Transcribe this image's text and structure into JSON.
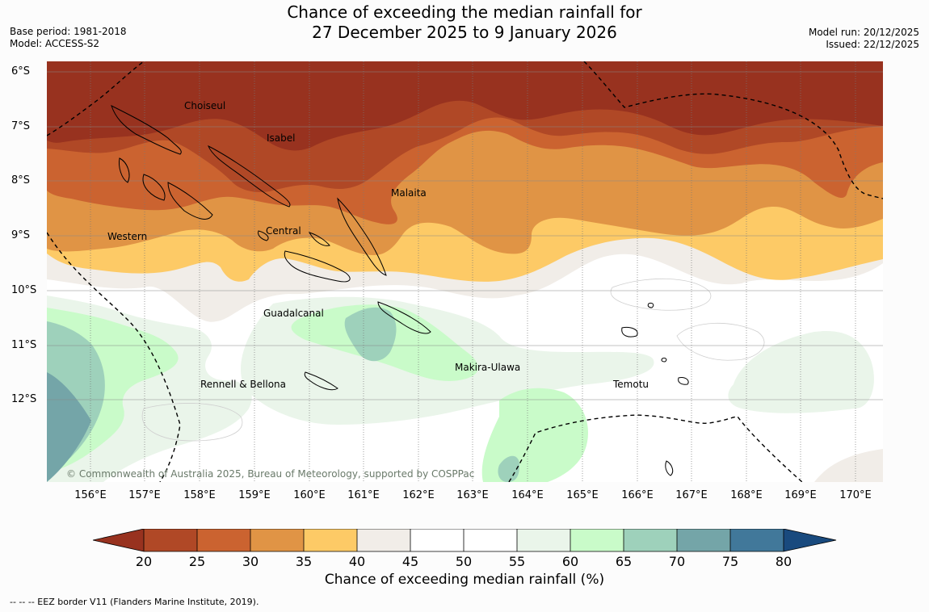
{
  "title": {
    "line1": "Chance of exceeding the median rainfall for",
    "line2": "27 December 2025 to 9 January 2026"
  },
  "meta": {
    "base_period": "Base period: 1981-2018",
    "model": "Model: ACCESS-S2",
    "model_run": "Model run: 20/12/2025",
    "issued": "Issued: 22/12/2025"
  },
  "map": {
    "lat_labels": [
      "6°S",
      "7°S",
      "8°S",
      "9°S",
      "10°S",
      "11°S",
      "12°S"
    ],
    "lon_labels": [
      "156°E",
      "157°E",
      "158°E",
      "159°E",
      "160°E",
      "161°E",
      "162°E",
      "163°E",
      "164°E",
      "165°E",
      "166°E",
      "167°E",
      "168°E",
      "169°E",
      "170°E"
    ],
    "regions": {
      "choiseul": "Choiseul",
      "isabel": "Isabel",
      "malaita": "Malaita",
      "western": "Western",
      "central": "Central",
      "guadalcanal": "Guadalcanal",
      "rennell": "Rennell & Bellona",
      "makira": "Makira-Ulawa",
      "temotu": "Temotu"
    },
    "copyright": "© Commonwealth of Australia 2025, Bureau of Meteorology, supported by COSPPac"
  },
  "colorbar": {
    "ticks": [
      "20",
      "25",
      "30",
      "35",
      "40",
      "45",
      "50",
      "55",
      "60",
      "65",
      "70",
      "75",
      "80"
    ],
    "colors": [
      "#98321f",
      "#b04826",
      "#cb6330",
      "#e09445",
      "#fdca66",
      "#f1ede8",
      "#ffffff",
      "#ffffff",
      "#eaf5ea",
      "#c9fbc9",
      "#9ed1bb",
      "#74a5a8",
      "#41789a",
      "#194a7e"
    ],
    "label": "Chance of exceeding median rainfall (%)"
  },
  "footnote": "-- -- -- EEZ border V11 (Flanders Marine Institute, 2019)."
}
